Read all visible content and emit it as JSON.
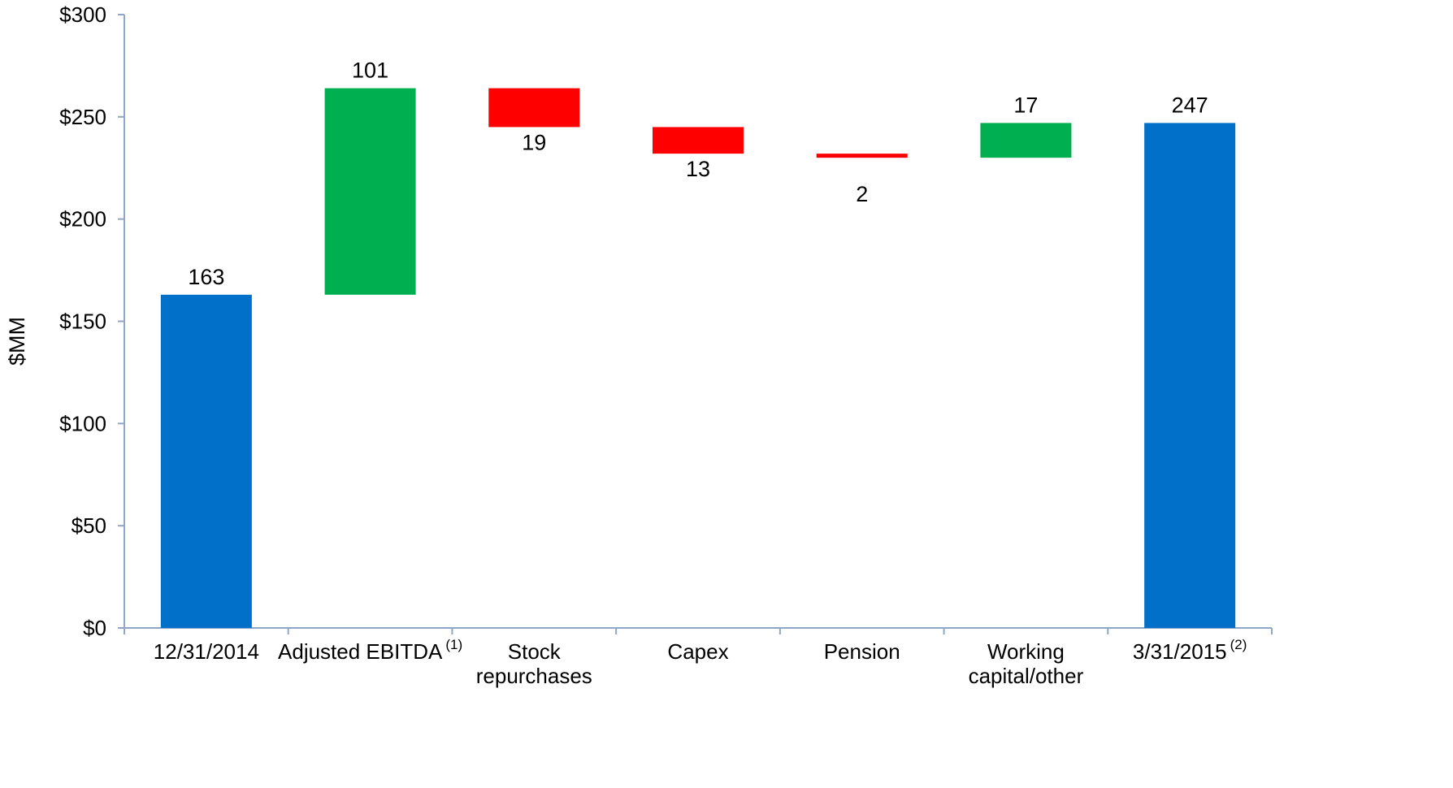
{
  "chart_data": {
    "type": "bar",
    "subtype": "waterfall",
    "title": "",
    "xlabel": "",
    "ylabel": "$MM",
    "ylim": [
      0,
      300
    ],
    "y_ticks": [
      "$0",
      "$50",
      "$100",
      "$150",
      "$200",
      "$250",
      "$300"
    ],
    "y_tick_values": [
      0,
      50,
      100,
      150,
      200,
      250,
      300
    ],
    "grid": false,
    "legend": "none",
    "colors": {
      "total": "#0070C8",
      "increase": "#00B050",
      "decrease": "#FF0000"
    },
    "categories": [
      {
        "label_lines": [
          "12/31/2014"
        ],
        "superscript": "",
        "kind": "total",
        "base": 0,
        "value": 163,
        "data_label": "163",
        "label_pos": "above"
      },
      {
        "label_lines": [
          "Adjusted EBITDA"
        ],
        "superscript": "(1)",
        "kind": "increase",
        "base": 163,
        "value": 101,
        "data_label": "101",
        "label_pos": "above"
      },
      {
        "label_lines": [
          "Stock",
          "repurchases"
        ],
        "superscript": "",
        "kind": "decrease",
        "base": 264,
        "value": -19,
        "data_label": "19",
        "label_pos": "below"
      },
      {
        "label_lines": [
          "Capex"
        ],
        "superscript": "",
        "kind": "decrease",
        "base": 245,
        "value": -13,
        "data_label": "13",
        "label_pos": "below"
      },
      {
        "label_lines": [
          "Pension"
        ],
        "superscript": "",
        "kind": "decrease",
        "base": 232,
        "value": -2,
        "data_label": "2",
        "label_pos": "below"
      },
      {
        "label_lines": [
          "Working",
          "capital/other"
        ],
        "superscript": "",
        "kind": "increase",
        "base": 230,
        "value": 17,
        "data_label": "17",
        "label_pos": "above"
      },
      {
        "label_lines": [
          "3/31/2015"
        ],
        "superscript": "(2)",
        "kind": "total",
        "base": 0,
        "value": 247,
        "data_label": "247",
        "label_pos": "above"
      }
    ]
  }
}
